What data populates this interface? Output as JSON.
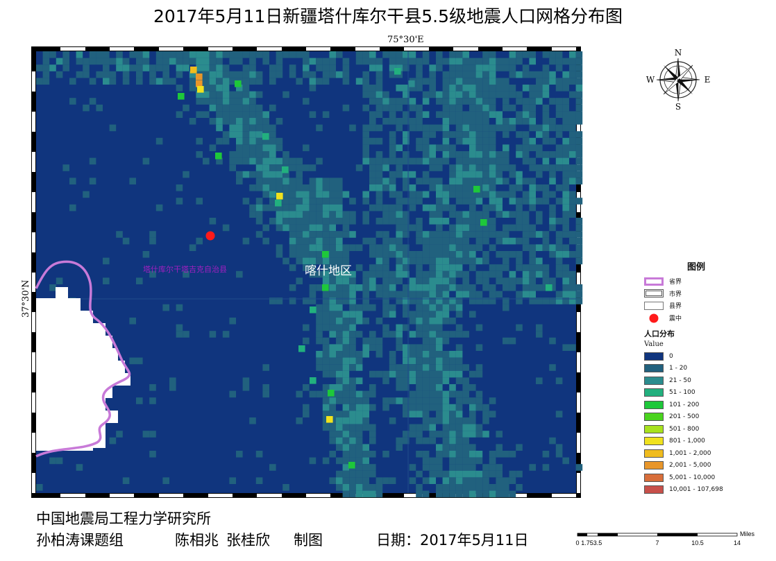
{
  "title": "2017年5月11日新疆塔什库尔干县5.5级地震人口网格分布图",
  "coords": {
    "top_lon": "75°30'E",
    "left_lat": "37°30'N"
  },
  "map": {
    "place_label": "喀什地区",
    "county_label": "塔什库尔干塔吉克自治县",
    "colors": {
      "bg": "#10357e",
      "c1": "#21617e",
      "c2": "#2b8c8e",
      "c3": "#22b07e",
      "c4": "#1ec83a",
      "c5": "#4ad41e",
      "c6": "#a8e21e",
      "c7": "#f0e21e",
      "c8": "#f0bc1e",
      "c9": "#e8962a",
      "c10": "#d86e3a",
      "c11": "#c8504a",
      "province": "#c87ad8",
      "epicenter": "#ff1a1a"
    }
  },
  "compass": {
    "n": "N",
    "s": "S",
    "e": "E",
    "w": "W"
  },
  "legend": {
    "title": "图例",
    "boundaries": [
      {
        "label": "省界",
        "kind": "province"
      },
      {
        "label": "市界",
        "kind": "city"
      },
      {
        "label": "县界",
        "kind": "county"
      },
      {
        "label": "震中",
        "kind": "epicenter"
      }
    ],
    "pop_title": "人口分布",
    "value_label": "Value",
    "classes": [
      {
        "label": "0",
        "color": "#10357e"
      },
      {
        "label": "1 - 20",
        "color": "#21617e"
      },
      {
        "label": "21 - 50",
        "color": "#2b8c8e"
      },
      {
        "label": "51 - 100",
        "color": "#22b07e"
      },
      {
        "label": "101 - 200",
        "color": "#1ec83a"
      },
      {
        "label": "201 - 500",
        "color": "#4ad41e"
      },
      {
        "label": "501 - 800",
        "color": "#a8e21e"
      },
      {
        "label": "801 - 1,000",
        "color": "#f0e21e"
      },
      {
        "label": "1,001 - 2,000",
        "color": "#f0bc1e"
      },
      {
        "label": "2,001 - 5,000",
        "color": "#e8962a"
      },
      {
        "label": "5,001 - 10,000",
        "color": "#d86e3a"
      },
      {
        "label": "10,001 - 107,698",
        "color": "#c8504a"
      }
    ]
  },
  "footer": {
    "org": "中国地震局工程力学研究所",
    "group": "孙柏涛课题组",
    "author1": "陈相兆",
    "author2": "张桂欣",
    "made": "制图",
    "date": "日期：2017年5月11日"
  },
  "scale": {
    "unit": "Miles",
    "ticks": [
      "0",
      "1.75",
      "3.5",
      "7",
      "10.5",
      "14"
    ]
  }
}
